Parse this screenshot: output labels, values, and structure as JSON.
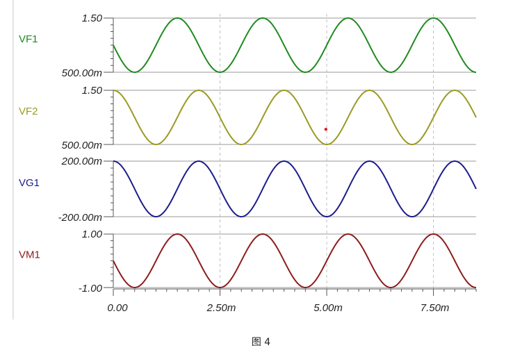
{
  "chart_data": {
    "type": "line",
    "x_axis": {
      "range": [
        0,
        0.0085
      ],
      "ticks": [
        0,
        0.0025,
        0.005,
        0.0075
      ],
      "tick_labels": [
        "0.00",
        "2.50m",
        "5.00m",
        "7.50m"
      ],
      "grid": "dashed-vertical"
    },
    "series": [
      {
        "name": "VF1",
        "color": "#1f8a1f",
        "ylim": [
          0.5,
          1.5
        ],
        "y_tick_labels": [
          "1.50",
          "500.00m"
        ],
        "offset": 1.0,
        "amplitude": 0.5,
        "period": 0.002,
        "phase_deg": 180
      },
      {
        "name": "VF2",
        "color": "#9a9a22",
        "ylim": [
          0.5,
          1.5
        ],
        "y_tick_labels": [
          "1.50",
          "500.00m"
        ],
        "offset": 1.0,
        "amplitude": 0.5,
        "period": 0.002,
        "phase_deg": 90
      },
      {
        "name": "VG1",
        "color": "#1c1c8c",
        "ylim": [
          -0.2,
          0.2
        ],
        "y_tick_labels": [
          "200.00m",
          "-200.00m"
        ],
        "offset": 0.0,
        "amplitude": 0.2,
        "period": 0.002,
        "phase_deg": 90
      },
      {
        "name": "VM1",
        "color": "#8c1c1c",
        "ylim": [
          -1.0,
          1.0
        ],
        "y_tick_labels": [
          "1.00",
          "-1.00"
        ],
        "offset": 0.0,
        "amplitude": 1.0,
        "period": 0.002,
        "phase_deg": 180
      }
    ],
    "marker": {
      "x": 0.00498,
      "y": 0.78,
      "series_index": 1,
      "color": "#e02020"
    }
  },
  "caption": "图 4"
}
